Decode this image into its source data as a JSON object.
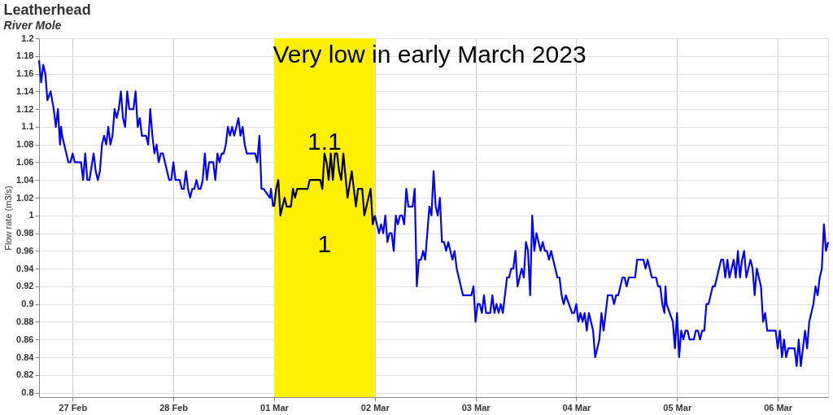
{
  "chart_data": {
    "type": "line",
    "title": "Leatherhead",
    "subtitle": "River Mole",
    "ylabel": "Flow rate (m3/s)",
    "annotations": [
      "Very low in early March 2023",
      "1.1",
      "1"
    ],
    "bands": [
      {
        "axis": "x",
        "from": "2023-03-01",
        "to": "2023-03-02",
        "color": "#fff000"
      }
    ],
    "series": [
      {
        "color": "#0000ff",
        "x": [
          "2023-02-26T16:00",
          "2023-02-26T16:30",
          "2023-02-26T17:00",
          "2023-02-26T17:30",
          "2023-02-26T18:00",
          "2023-02-26T18:45",
          "2023-02-26T19:30",
          "2023-02-26T20:00",
          "2023-02-26T20:30",
          "2023-02-26T21:00",
          "2023-02-26T21:15",
          "2023-02-26T21:30",
          "2023-02-26T23:00",
          "2023-02-26T23:30",
          "2023-02-27T00:00",
          "2023-02-27T00:30",
          "2023-02-27T02:00",
          "2023-02-27T02:30",
          "2023-02-27T03:00",
          "2023-02-27T03:30",
          "2023-02-27T04:00",
          "2023-02-27T05:00",
          "2023-02-27T05:30",
          "2023-02-27T06:00",
          "2023-02-27T06:30",
          "2023-02-27T07:00",
          "2023-02-27T07:30",
          "2023-02-27T08:00",
          "2023-02-27T08:30",
          "2023-02-27T09:00",
          "2023-02-27T09:30",
          "2023-02-27T10:00",
          "2023-02-27T10:30",
          "2023-02-27T11:00",
          "2023-02-27T11:30",
          "2023-02-27T12:00",
          "2023-02-27T12:30",
          "2023-02-27T13:00",
          "2023-02-27T13:30",
          "2023-02-27T14:30",
          "2023-02-27T15:00",
          "2023-02-27T15:30",
          "2023-02-27T16:00",
          "2023-02-27T16:30",
          "2023-02-27T17:30",
          "2023-02-27T18:00",
          "2023-02-27T18:30",
          "2023-02-27T19:00",
          "2023-02-27T19:30",
          "2023-02-27T20:00",
          "2023-02-27T20:30",
          "2023-02-27T21:00",
          "2023-02-27T21:30",
          "2023-02-27T23:00",
          "2023-02-27T23:30",
          "2023-02-28T00:00",
          "2023-02-28T00:30",
          "2023-02-28T01:30",
          "2023-02-28T02:00",
          "2023-02-28T02:30",
          "2023-02-28T03:00",
          "2023-02-28T03:30",
          "2023-02-28T04:00",
          "2023-02-28T04:30",
          "2023-02-28T05:00",
          "2023-02-28T05:30",
          "2023-02-28T06:00",
          "2023-02-28T06:30",
          "2023-02-28T07:00",
          "2023-02-28T07:30",
          "2023-02-28T08:00",
          "2023-02-28T08:30",
          "2023-02-28T09:30",
          "2023-02-28T10:00",
          "2023-02-28T10:30",
          "2023-02-28T11:00",
          "2023-02-28T11:30",
          "2023-02-28T12:00",
          "2023-02-28T12:30",
          "2023-02-28T13:00",
          "2023-02-28T13:30",
          "2023-02-28T14:00",
          "2023-02-28T14:30",
          "2023-02-28T15:00",
          "2023-02-28T15:30",
          "2023-02-28T16:00",
          "2023-02-28T16:30",
          "2023-02-28T17:00",
          "2023-02-28T17:30",
          "2023-02-28T19:30",
          "2023-02-28T20:00",
          "2023-02-28T20:30",
          "2023-02-28T21:00",
          "2023-02-28T21:30",
          "2023-02-28T23:00",
          "2023-02-28T23:15",
          "2023-02-28T23:45"
        ],
        "values": [
          1.175,
          1.15,
          1.17,
          1.16,
          1.13,
          1.14,
          1.12,
          1.1,
          1.12,
          1.08,
          1.1,
          1.09,
          1.06,
          1.06,
          1.07,
          1.06,
          1.06,
          1.04,
          1.07,
          1.04,
          1.04,
          1.07,
          1.05,
          1.04,
          1.05,
          1.08,
          1.09,
          1.08,
          1.1,
          1.08,
          1.09,
          1.12,
          1.11,
          1.12,
          1.14,
          1.11,
          1.1,
          1.14,
          1.12,
          1.12,
          1.14,
          1.1,
          1.11,
          1.09,
          1.09,
          1.08,
          1.12,
          1.09,
          1.07,
          1.08,
          1.06,
          1.07,
          1.07,
          1.04,
          1.04,
          1.06,
          1.04,
          1.04,
          1.03,
          1.03,
          1.05,
          1.03,
          1.02,
          1.03,
          1.03,
          1.04,
          1.03,
          1.03,
          1.04,
          1.07,
          1.04,
          1.06,
          1.06,
          1.04,
          1.07,
          1.06,
          1.07,
          1.07,
          1.08,
          1.1,
          1.09,
          1.1,
          1.09,
          1.1,
          1.11,
          1.09,
          1.1,
          1.08,
          1.07,
          1.07,
          1.06,
          1.09,
          1.03,
          1.03,
          1.02,
          1.03,
          1.01
        ]
      },
      {
        "color": "#000000",
        "x": [
          "2023-03-01T00:00",
          "2023-03-01T00:30",
          "2023-03-01T01:00",
          "2023-03-01T01:30",
          "2023-03-01T02:30",
          "2023-03-01T03:00",
          "2023-03-01T04:00",
          "2023-03-01T04:30",
          "2023-03-01T05:00",
          "2023-03-01T05:30",
          "2023-03-01T08:00",
          "2023-03-01T08:30",
          "2023-03-01T11:00",
          "2023-03-01T11:30",
          "2023-03-01T12:00",
          "2023-03-01T12:30",
          "2023-03-01T13:00",
          "2023-03-01T13:30",
          "2023-03-01T14:00",
          "2023-03-01T14:30",
          "2023-03-01T15:00",
          "2023-03-01T15:30",
          "2023-03-01T16:00",
          "2023-03-01T16:30",
          "2023-03-01T17:30",
          "2023-03-01T18:30",
          "2023-03-01T19:30",
          "2023-03-01T20:00",
          "2023-03-01T21:00",
          "2023-03-01T21:30",
          "2023-03-01T23:00",
          "2023-03-01T23:30",
          "2023-03-02T00:00"
        ],
        "values": [
          1.01,
          1.03,
          1.04,
          1.0,
          1.02,
          1.01,
          1.01,
          1.03,
          1.02,
          1.03,
          1.03,
          1.04,
          1.04,
          1.03,
          1.07,
          1.06,
          1.04,
          1.07,
          1.04,
          1.07,
          1.07,
          1.05,
          1.04,
          1.07,
          1.02,
          1.05,
          1.01,
          1.03,
          1.03,
          1.0,
          1.03,
          0.99,
          1.0
        ]
      },
      {
        "color": "#0000ff",
        "x": [
          "2023-03-02T00:00",
          "2023-03-02T00:30",
          "2023-03-02T01:00",
          "2023-03-02T01:30",
          "2023-03-02T02:00",
          "2023-03-02T02:30",
          "2023-03-02T03:00",
          "2023-03-02T03:30",
          "2023-03-02T04:00",
          "2023-03-02T04:30",
          "2023-03-02T05:00",
          "2023-03-02T05:30",
          "2023-03-02T06:00",
          "2023-03-02T06:30",
          "2023-03-02T07:00",
          "2023-03-02T07:30",
          "2023-03-02T08:00",
          "2023-03-02T09:00",
          "2023-03-02T09:30",
          "2023-03-02T10:00",
          "2023-03-02T10:30",
          "2023-03-02T11:00",
          "2023-03-02T11:30",
          "2023-03-02T12:00",
          "2023-03-02T12:30",
          "2023-03-02T13:00",
          "2023-03-02T13:30",
          "2023-03-02T14:00",
          "2023-03-02T14:30",
          "2023-03-02T15:00",
          "2023-03-02T15:30",
          "2023-03-02T16:00",
          "2023-03-02T16:30",
          "2023-03-02T17:00",
          "2023-03-02T17:30",
          "2023-03-02T18:30",
          "2023-03-02T19:00",
          "2023-03-02T19:30",
          "2023-03-02T21:00",
          "2023-03-02T23:00",
          "2023-03-02T23:30",
          "2023-03-03T00:00",
          "2023-03-03T00:30",
          "2023-03-03T01:00",
          "2023-03-03T01:30",
          "2023-03-03T02:00",
          "2023-03-03T02:30",
          "2023-03-03T03:30",
          "2023-03-03T04:00",
          "2023-03-03T04:30",
          "2023-03-03T05:00",
          "2023-03-03T05:30",
          "2023-03-03T06:00",
          "2023-03-03T06:30",
          "2023-03-03T07:30",
          "2023-03-03T08:00",
          "2023-03-03T08:30",
          "2023-03-03T09:00",
          "2023-03-03T09:30",
          "2023-03-03T10:00",
          "2023-03-03T10:30",
          "2023-03-03T11:00",
          "2023-03-03T11:30",
          "2023-03-03T12:00",
          "2023-03-03T12:30",
          "2023-03-03T13:00",
          "2023-03-03T13:30",
          "2023-03-03T14:00",
          "2023-03-03T14:30",
          "2023-03-03T15:30",
          "2023-03-03T16:00",
          "2023-03-03T16:30",
          "2023-03-03T17:00",
          "2023-03-03T17:30",
          "2023-03-03T18:00",
          "2023-03-03T19:30",
          "2023-03-03T20:00",
          "2023-03-03T20:30",
          "2023-03-03T21:00",
          "2023-03-03T21:30",
          "2023-03-03T23:00",
          "2023-03-03T23:30",
          "2023-03-04T00:00",
          "2023-03-04T00:30",
          "2023-03-04T01:00",
          "2023-03-04T01:30",
          "2023-03-04T02:00",
          "2023-03-04T02:30",
          "2023-03-04T03:00",
          "2023-03-04T04:00",
          "2023-03-04T04:30",
          "2023-03-04T05:30",
          "2023-03-04T06:00",
          "2023-03-04T06:30",
          "2023-03-04T07:30",
          "2023-03-04T08:30",
          "2023-03-04T09:00",
          "2023-03-04T09:30",
          "2023-03-04T10:00",
          "2023-03-04T11:00",
          "2023-03-04T11:30",
          "2023-03-04T12:00",
          "2023-03-04T12:30",
          "2023-03-04T14:00",
          "2023-03-04T14:30",
          "2023-03-04T16:00",
          "2023-03-04T16:30",
          "2023-03-04T17:00",
          "2023-03-04T18:00",
          "2023-03-04T19:00",
          "2023-03-04T19:30",
          "2023-03-04T20:00",
          "2023-03-04T20:30",
          "2023-03-04T21:00",
          "2023-03-04T21:15",
          "2023-03-04T21:30",
          "2023-03-04T23:00",
          "2023-03-04T23:30",
          "2023-03-05T00:00",
          "2023-03-05T00:30",
          "2023-03-05T01:00",
          "2023-03-05T01:30",
          "2023-03-05T02:00",
          "2023-03-05T02:30",
          "2023-03-05T03:00",
          "2023-03-05T04:00",
          "2023-03-05T04:30",
          "2023-03-05T05:00",
          "2023-03-05T05:30",
          "2023-03-05T06:00",
          "2023-03-05T06:30",
          "2023-03-05T07:00",
          "2023-03-05T07:30",
          "2023-03-05T08:30",
          "2023-03-05T09:00",
          "2023-03-05T10:30",
          "2023-03-05T11:00",
          "2023-03-05T11:30",
          "2023-03-05T12:00",
          "2023-03-05T12:30",
          "2023-03-05T13:30",
          "2023-03-05T14:00",
          "2023-03-05T14:30",
          "2023-03-05T15:00",
          "2023-03-05T15:30",
          "2023-03-05T16:00",
          "2023-03-05T16:30",
          "2023-03-05T17:30",
          "2023-03-05T18:00",
          "2023-03-05T18:30",
          "2023-03-05T19:00",
          "2023-03-05T20:00",
          "2023-03-05T20:30",
          "2023-03-05T21:00",
          "2023-03-05T21:30",
          "2023-03-05T23:30",
          "2023-03-06T00:00",
          "2023-03-06T00:30",
          "2023-03-06T01:00",
          "2023-03-06T01:30",
          "2023-03-06T02:00",
          "2023-03-06T02:30",
          "2023-03-06T04:00",
          "2023-03-06T04:30",
          "2023-03-06T05:00",
          "2023-03-06T05:30",
          "2023-03-06T06:30",
          "2023-03-06T07:00",
          "2023-03-06T07:30",
          "2023-03-06T08:30",
          "2023-03-06T09:00",
          "2023-03-06T09:30",
          "2023-03-06T10:00",
          "2023-03-06T10:30",
          "2023-03-06T11:00",
          "2023-03-06T11:30",
          "2023-03-06T12:00"
        ],
        "values": [
          1.0,
          0.99,
          0.98,
          0.99,
          0.98,
          1.0,
          0.97,
          0.98,
          0.98,
          0.96,
          1.0,
          0.99,
          1.0,
          1.0,
          0.99,
          1.03,
          1.01,
          1.01,
          1.03,
          0.92,
          0.95,
          0.95,
          0.96,
          0.95,
          0.98,
          1.01,
          1.0,
          1.05,
          1.01,
          1.0,
          1.02,
          0.97,
          0.97,
          0.96,
          0.97,
          0.95,
          0.96,
          0.94,
          0.91,
          0.91,
          0.92,
          0.88,
          0.9,
          0.9,
          0.89,
          0.91,
          0.89,
          0.89,
          0.91,
          0.89,
          0.9,
          0.89,
          0.9,
          0.89,
          0.93,
          0.93,
          0.94,
          0.94,
          0.96,
          0.92,
          0.93,
          0.94,
          0.93,
          0.97,
          0.96,
          0.91,
          1.0,
          0.96,
          0.98,
          0.96,
          0.97,
          0.96,
          0.96,
          0.95,
          0.96,
          0.93,
          0.93,
          0.91,
          0.9,
          0.91,
          0.89,
          0.89,
          0.9,
          0.88,
          0.89,
          0.88,
          0.89,
          0.87,
          0.89,
          0.87,
          0.84,
          0.86,
          0.89,
          0.87,
          0.91,
          0.91,
          0.9,
          0.91,
          0.91,
          0.93,
          0.93,
          0.92,
          0.93,
          0.93,
          0.95,
          0.95,
          0.94,
          0.95,
          0.93,
          0.93,
          0.92,
          0.92,
          0.9,
          0.89,
          0.92,
          0.9,
          0.88,
          0.85,
          0.89,
          0.84,
          0.87,
          0.86,
          0.87,
          0.87,
          0.86,
          0.86,
          0.87,
          0.87,
          0.86,
          0.87,
          0.87,
          0.9,
          0.9,
          0.92,
          0.92,
          0.95,
          0.95,
          0.93,
          0.95,
          0.93,
          0.95,
          0.93,
          0.96,
          0.93,
          0.95,
          0.96,
          0.93,
          0.95,
          0.94,
          0.91,
          0.94,
          0.92,
          0.88,
          0.89,
          0.87,
          0.87,
          0.85,
          0.87,
          0.84,
          0.86,
          0.84,
          0.85,
          0.85,
          0.83,
          0.86,
          0.83,
          0.87,
          0.85,
          0.88,
          0.9,
          0.92,
          0.91,
          0.93,
          0.94,
          0.99,
          0.96,
          0.97
        ]
      }
    ],
    "xlim": [
      "2023-02-26T16:00",
      "2023-03-06T12:00"
    ],
    "xticks": [
      {
        "value": "2023-02-27",
        "label": "27 Feb"
      },
      {
        "value": "2023-02-28",
        "label": "28 Feb"
      },
      {
        "value": "2023-03-01",
        "label": "01 Mar"
      },
      {
        "value": "2023-03-02",
        "label": "02 Mar"
      },
      {
        "value": "2023-03-03",
        "label": "03 Mar"
      },
      {
        "value": "2023-03-04",
        "label": "04 Mar"
      },
      {
        "value": "2023-03-05",
        "label": "05 Mar"
      },
      {
        "value": "2023-03-06",
        "label": "06 Mar"
      }
    ],
    "ylim": [
      0.795,
      1.2
    ],
    "yticks": [
      0.8,
      0.82,
      0.84,
      0.86,
      0.88,
      0.9,
      0.92,
      0.94,
      0.96,
      0.98,
      1,
      1.02,
      1.04,
      1.06,
      1.08,
      1.1,
      1.12,
      1.14,
      1.16,
      1.18,
      1.2
    ],
    "grid": true,
    "marker": "none",
    "line_style": "solid"
  }
}
